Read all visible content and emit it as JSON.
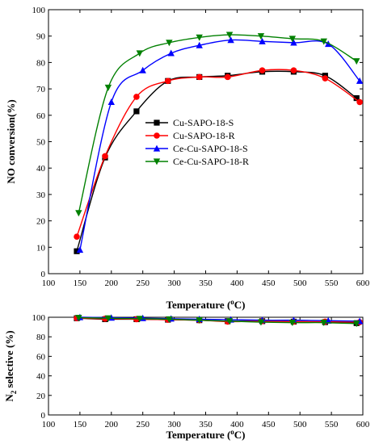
{
  "chart_data": [
    {
      "type": "line",
      "title": "",
      "xlabel": "Temperature (oC)",
      "ylabel": "NO conversion(%)",
      "xlim": [
        100,
        600
      ],
      "ylim": [
        0,
        100
      ],
      "xticks": [
        100,
        150,
        200,
        250,
        300,
        350,
        400,
        450,
        500,
        550,
        600
      ],
      "yticks": [
        0,
        10,
        20,
        30,
        40,
        50,
        60,
        70,
        80,
        90,
        100
      ],
      "grid": false,
      "legend_position": "center-right",
      "series": [
        {
          "name": "Cu-SAPO-18-S",
          "color": "#000000",
          "marker": "square",
          "x": [
            145,
            190,
            240,
            290,
            340,
            385,
            440,
            490,
            540,
            590
          ],
          "y": [
            8.5,
            44,
            61.5,
            73,
            74.5,
            75,
            76.5,
            76.5,
            75,
            66.5
          ]
        },
        {
          "name": "Cu-SAPO-18-R",
          "color": "#ff0000",
          "marker": "circle",
          "x": [
            145,
            190,
            240,
            290,
            340,
            385,
            440,
            490,
            540,
            595
          ],
          "y": [
            14,
            44.5,
            67,
            73,
            74.5,
            74.5,
            77,
            77,
            74,
            65
          ]
        },
        {
          "name": "Ce-Cu-SAPO-18-S",
          "color": "#0000ff",
          "marker": "triangle-up",
          "x": [
            150,
            200,
            250,
            295,
            340,
            390,
            440,
            490,
            545,
            595
          ],
          "y": [
            9,
            65,
            77,
            83.5,
            86.5,
            88.5,
            88,
            87.5,
            87,
            73
          ]
        },
        {
          "name": "Ce-Cu-SAPO-18-R",
          "color": "#008000",
          "marker": "triangle-down",
          "x": [
            148,
            195,
            245,
            292,
            340,
            388,
            438,
            488,
            538,
            590
          ],
          "y": [
            23,
            70.5,
            83.5,
            87.5,
            89.5,
            90.5,
            90,
            89,
            88,
            80.5
          ]
        }
      ]
    },
    {
      "type": "line",
      "title": "",
      "xlabel": "Temperature (oC)",
      "ylabel": "N2 selective (%)",
      "xlim": [
        100,
        600
      ],
      "ylim": [
        0,
        100
      ],
      "xticks": [
        100,
        150,
        200,
        250,
        300,
        350,
        400,
        450,
        500,
        550,
        600
      ],
      "yticks": [
        0,
        20,
        40,
        60,
        80,
        100
      ],
      "grid": false,
      "series": [
        {
          "name": "Cu-SAPO-18-S",
          "color": "#000000",
          "marker": "square",
          "x": [
            145,
            190,
            240,
            290,
            340,
            385,
            440,
            490,
            540,
            590
          ],
          "y": [
            99,
            98,
            98,
            97.5,
            97,
            96,
            96,
            95.5,
            95,
            94
          ]
        },
        {
          "name": "Cu-SAPO-18-R",
          "color": "#ff0000",
          "marker": "circle",
          "x": [
            145,
            190,
            240,
            290,
            340,
            385,
            440,
            490,
            540,
            595
          ],
          "y": [
            99,
            98.5,
            98,
            97.5,
            97,
            95.5,
            96,
            95.5,
            95.5,
            95
          ]
        },
        {
          "name": "Ce-Cu-SAPO-18-S",
          "color": "#0000ff",
          "marker": "triangle-up",
          "x": [
            150,
            200,
            250,
            295,
            340,
            390,
            440,
            490,
            545,
            595
          ],
          "y": [
            100,
            99.5,
            99,
            98.5,
            98,
            97.5,
            97,
            97,
            96.5,
            96
          ]
        },
        {
          "name": "Ce-Cu-SAPO-18-R",
          "color": "#008000",
          "marker": "triangle-down",
          "x": [
            148,
            195,
            245,
            292,
            340,
            388,
            438,
            488,
            538,
            590
          ],
          "y": [
            99.5,
            99,
            98.5,
            98,
            97,
            96,
            95,
            94.5,
            94.5,
            93.5
          ]
        }
      ]
    }
  ]
}
